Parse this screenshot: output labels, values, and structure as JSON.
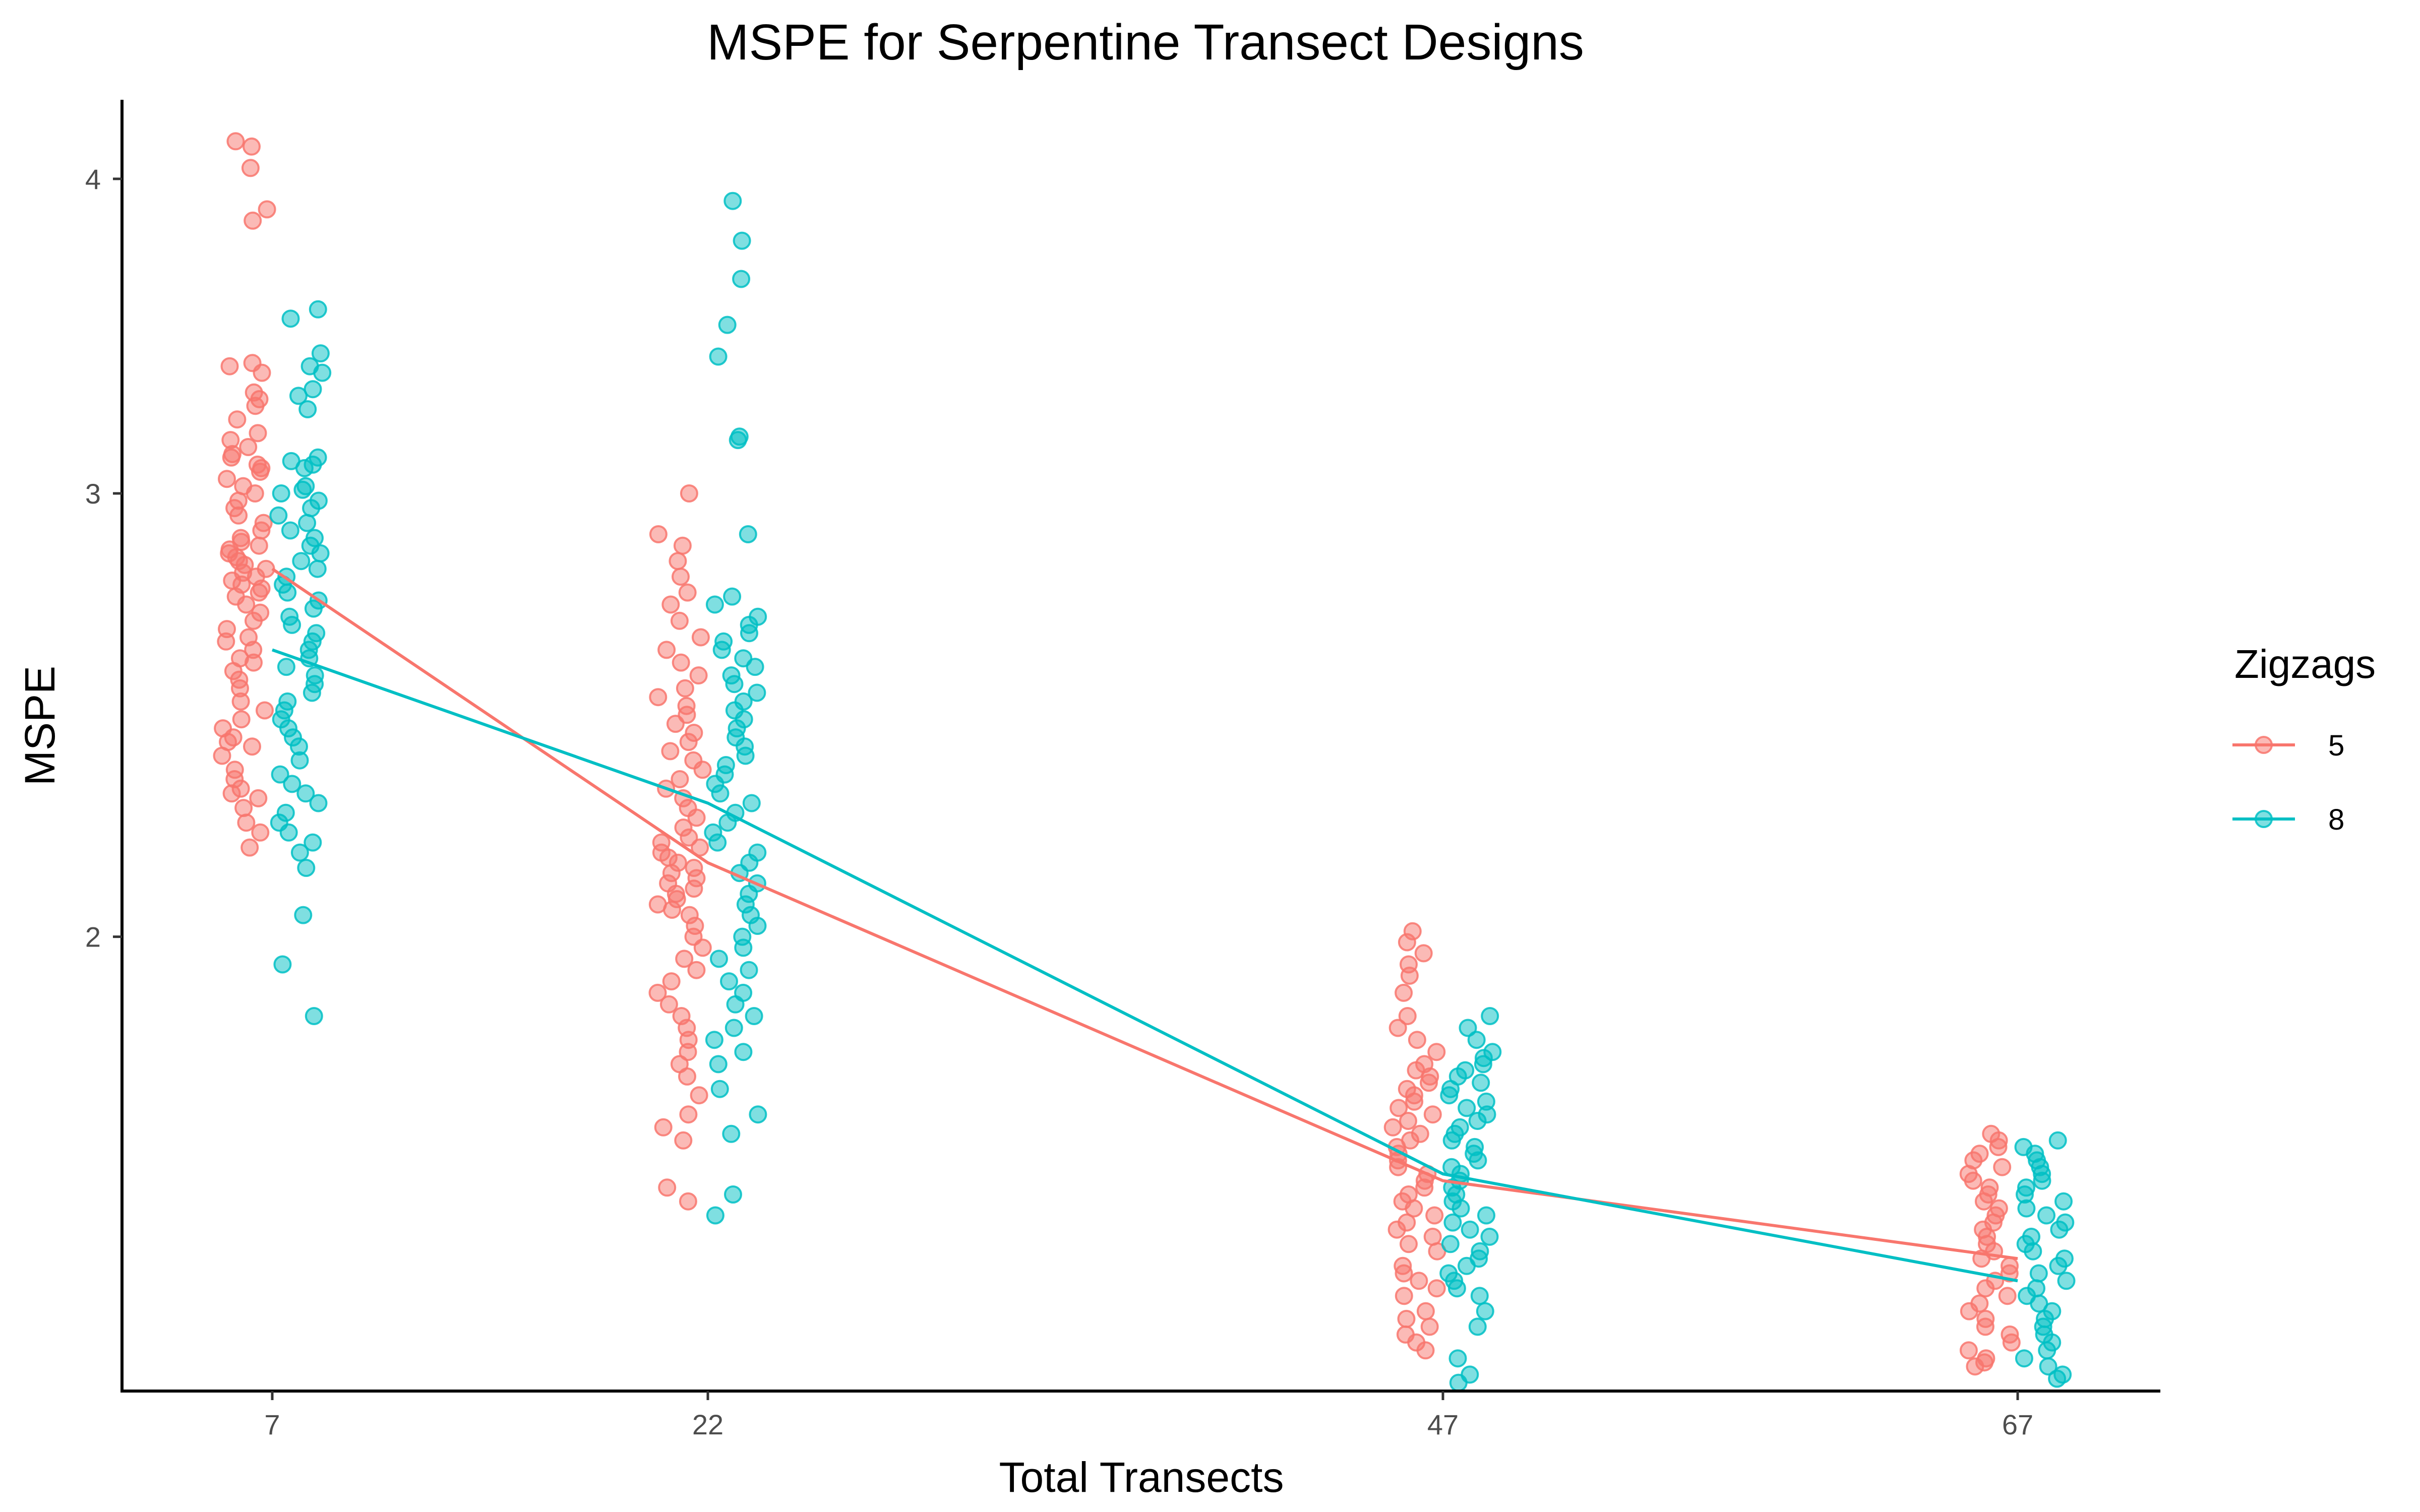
{
  "chart_data": {
    "type": "scatter",
    "title": "MSPE for Serpentine Transect Designs",
    "xlabel": "Total Transects",
    "ylabel": "MSPE",
    "categories": [
      "7",
      "22",
      "47",
      "67"
    ],
    "y_scale": "log",
    "ylim": [
      1.32,
      4.3
    ],
    "y_ticks": [
      2,
      3,
      4
    ],
    "grid": false,
    "legend": {
      "title": "Zigzags",
      "position": "right"
    },
    "colors": {
      "5": "#F8766D",
      "8": "#00BFC4"
    },
    "series": [
      {
        "name": "5",
        "color": "#F8766D",
        "mean_line": [
          2.8,
          2.14,
          1.6,
          1.49
        ],
        "points": [
          [
            4.12,
            4.14,
            4.04,
            3.89,
            3.85,
            3.38,
            3.37,
            3.35,
            3.29,
            3.27,
            3.25,
            3.21,
            3.17,
            3.15,
            3.13,
            3.11,
            3.1,
            3.08,
            3.07,
            3.06,
            3.04,
            3.02,
            3.0,
            2.98,
            2.96,
            2.94,
            2.92,
            2.9,
            2.88,
            2.87,
            2.86,
            2.85,
            2.84,
            2.83,
            2.82,
            2.81,
            2.8,
            2.79,
            2.78,
            2.77,
            2.76,
            2.75,
            2.74,
            2.73,
            2.71,
            2.69,
            2.67,
            2.65,
            2.63,
            2.62,
            2.6,
            2.58,
            2.57,
            2.55,
            2.53,
            2.51,
            2.48,
            2.46,
            2.44,
            2.42,
            2.4,
            2.39,
            2.38,
            2.36,
            2.33,
            2.31,
            2.29,
            2.28,
            2.27,
            2.25,
            2.22,
            2.2,
            2.17
          ],
          [
            3.0,
            2.89,
            2.86,
            2.82,
            2.78,
            2.74,
            2.71,
            2.67,
            2.63,
            2.6,
            2.57,
            2.54,
            2.51,
            2.49,
            2.47,
            2.45,
            2.43,
            2.41,
            2.39,
            2.37,
            2.35,
            2.33,
            2.31,
            2.29,
            2.27,
            2.25,
            2.23,
            2.21,
            2.19,
            2.18,
            2.17,
            2.16,
            2.15,
            2.14,
            2.13,
            2.12,
            2.11,
            2.1,
            2.09,
            2.08,
            2.07,
            2.06,
            2.05,
            2.04,
            2.02,
            2.0,
            1.98,
            1.96,
            1.94,
            1.92,
            1.9,
            1.88,
            1.86,
            1.84,
            1.82,
            1.8,
            1.78,
            1.76,
            1.73,
            1.7,
            1.68,
            1.66,
            1.59,
            1.57
          ],
          [
            2.01,
            1.99,
            1.97,
            1.95,
            1.93,
            1.9,
            1.86,
            1.84,
            1.82,
            1.8,
            1.78,
            1.77,
            1.76,
            1.75,
            1.74,
            1.73,
            1.72,
            1.71,
            1.7,
            1.69,
            1.68,
            1.67,
            1.66,
            1.65,
            1.64,
            1.63,
            1.62,
            1.61,
            1.6,
            1.59,
            1.58,
            1.57,
            1.56,
            1.55,
            1.54,
            1.53,
            1.52,
            1.51,
            1.5,
            1.48,
            1.47,
            1.46,
            1.45,
            1.44,
            1.42,
            1.41,
            1.4,
            1.39,
            1.38,
            1.37
          ],
          [
            1.67,
            1.66,
            1.65,
            1.64,
            1.63,
            1.62,
            1.61,
            1.6,
            1.59,
            1.58,
            1.57,
            1.56,
            1.55,
            1.54,
            1.53,
            1.52,
            1.51,
            1.5,
            1.49,
            1.48,
            1.47,
            1.46,
            1.45,
            1.44,
            1.43,
            1.42,
            1.41,
            1.4,
            1.39,
            1.38,
            1.37,
            1.36,
            1.355,
            1.35
          ]
        ]
      },
      {
        "name": "8",
        "color": "#00BFC4",
        "mean_line": [
          2.6,
          2.26,
          1.61,
          1.46
        ],
        "points": [
          [
            3.55,
            3.52,
            3.41,
            3.37,
            3.35,
            3.3,
            3.28,
            3.24,
            3.1,
            3.09,
            3.08,
            3.07,
            3.02,
            3.01,
            3.0,
            2.98,
            2.96,
            2.94,
            2.92,
            2.9,
            2.88,
            2.86,
            2.84,
            2.82,
            2.8,
            2.78,
            2.76,
            2.74,
            2.72,
            2.7,
            2.68,
            2.66,
            2.64,
            2.62,
            2.6,
            2.58,
            2.56,
            2.54,
            2.52,
            2.5,
            2.48,
            2.46,
            2.44,
            2.42,
            2.4,
            2.38,
            2.35,
            2.32,
            2.3,
            2.28,
            2.26,
            2.24,
            2.22,
            2.2,
            2.18,
            2.16,
            2.13,
            2.04,
            1.95,
            1.86
          ],
          [
            3.92,
            3.78,
            3.65,
            3.5,
            3.4,
            3.16,
            3.15,
            2.89,
            2.73,
            2.71,
            2.68,
            2.66,
            2.64,
            2.62,
            2.6,
            2.58,
            2.56,
            2.54,
            2.52,
            2.5,
            2.48,
            2.46,
            2.44,
            2.42,
            2.4,
            2.38,
            2.36,
            2.34,
            2.32,
            2.3,
            2.28,
            2.26,
            2.24,
            2.22,
            2.2,
            2.18,
            2.16,
            2.14,
            2.12,
            2.1,
            2.08,
            2.06,
            2.04,
            2.02,
            2.0,
            1.98,
            1.96,
            1.94,
            1.92,
            1.9,
            1.88,
            1.86,
            1.84,
            1.82,
            1.8,
            1.78,
            1.74,
            1.7,
            1.67,
            1.58,
            1.55
          ],
          [
            1.86,
            1.84,
            1.82,
            1.8,
            1.79,
            1.78,
            1.77,
            1.76,
            1.75,
            1.74,
            1.73,
            1.72,
            1.71,
            1.7,
            1.69,
            1.68,
            1.67,
            1.66,
            1.65,
            1.64,
            1.63,
            1.62,
            1.61,
            1.6,
            1.59,
            1.58,
            1.57,
            1.56,
            1.55,
            1.54,
            1.53,
            1.52,
            1.51,
            1.5,
            1.49,
            1.48,
            1.47,
            1.46,
            1.45,
            1.44,
            1.42,
            1.4,
            1.36,
            1.34,
            1.33
          ],
          [
            1.66,
            1.65,
            1.64,
            1.63,
            1.62,
            1.61,
            1.6,
            1.59,
            1.58,
            1.57,
            1.56,
            1.55,
            1.54,
            1.53,
            1.52,
            1.51,
            1.5,
            1.49,
            1.48,
            1.47,
            1.46,
            1.45,
            1.44,
            1.43,
            1.42,
            1.41,
            1.4,
            1.39,
            1.38,
            1.37,
            1.36,
            1.35,
            1.34,
            1.335
          ]
        ]
      }
    ]
  }
}
